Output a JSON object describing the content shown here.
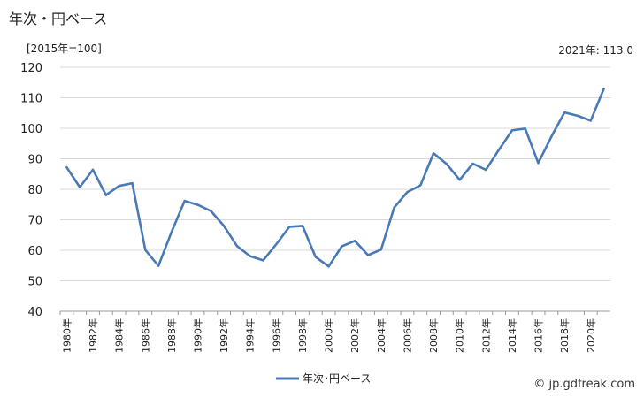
{
  "chart_data": {
    "type": "line",
    "title": "年次・円ベース",
    "unit_label": "[2015年=100]",
    "annotation": "2021年: 113.0",
    "x": [
      1980,
      1981,
      1982,
      1983,
      1984,
      1985,
      1986,
      1987,
      1988,
      1989,
      1990,
      1991,
      1992,
      1993,
      1994,
      1995,
      1996,
      1997,
      1998,
      1999,
      2000,
      2001,
      2002,
      2003,
      2004,
      2005,
      2006,
      2007,
      2008,
      2009,
      2010,
      2011,
      2012,
      2013,
      2014,
      2015,
      2016,
      2017,
      2018,
      2019,
      2020,
      2021
    ],
    "x_tick_labels": [
      "1980年",
      "1982年",
      "1984年",
      "1986年",
      "1988年",
      "1990年",
      "1992年",
      "1994年",
      "1996年",
      "1998年",
      "2000年",
      "2002年",
      "2004年",
      "2006年",
      "2008年",
      "2010年",
      "2012年",
      "2014年",
      "2016年",
      "2018年",
      "2020年"
    ],
    "series": [
      {
        "name": "年次･円ベース",
        "color": "#4a7ab5",
        "values": [
          87.2,
          80.7,
          86.4,
          78.1,
          81.1,
          82.0,
          60.1,
          54.9,
          66.0,
          76.2,
          74.9,
          72.9,
          68.0,
          61.4,
          58.1,
          56.7,
          62.0,
          67.7,
          68.0,
          57.8,
          54.7,
          61.3,
          63.1,
          58.4,
          60.2,
          74.0,
          79.1,
          81.3,
          91.8,
          88.3,
          83.1,
          88.4,
          86.4,
          93.0,
          99.3,
          99.9,
          88.6,
          97.3,
          105.2,
          104.1,
          102.5,
          113.0
        ]
      }
    ],
    "y_ticks": [
      40,
      50,
      60,
      70,
      80,
      90,
      100,
      110,
      120
    ],
    "ylim": [
      40,
      120
    ],
    "grid": true,
    "legend_position": "bottom"
  },
  "credit": "© jp.gdfreak.com"
}
